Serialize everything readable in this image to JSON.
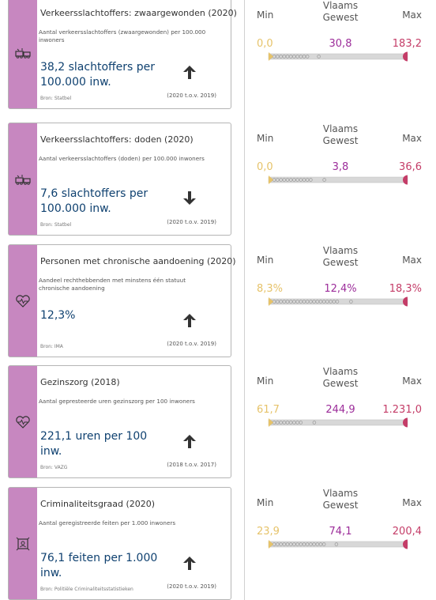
{
  "indicators": [
    {
      "title": "Verkeersslachtoffers: zwaargewonden (2020)",
      "description": "Aantal verkeersslachtoffers (zwaargewonden) per 100.000 inwoners",
      "value_line1": "38,2 slachtoffers per",
      "value_line2": "100.000 inw.",
      "trend": "up",
      "source": "Bron: Statbel",
      "period": "(2020 t.o.v. 2019)",
      "icon": "traffic-accident-icon",
      "min": "0,0",
      "vlaams_gewest": "30,8",
      "max": "183,2",
      "position_fraction": 0.168
    },
    {
      "title": "Verkeersslachtoffers: doden (2020)",
      "description": "Aantal verkeersslachtoffers (doden) per 100.000 inwoners",
      "value_line1": "7,6 slachtoffers per",
      "value_line2": "100.000 inw.",
      "trend": "down",
      "source": "Bron: Statbel",
      "period": "(2020 t.o.v. 2019)",
      "icon": "traffic-accident-icon",
      "min": "0,0",
      "vlaams_gewest": "3,8",
      "max": "36,6",
      "position_fraction": 0.208
    },
    {
      "title": "Personen met chronische aandoening (2020)",
      "description": "Aandeel rechthebbenden met minstens één statuut chronische aandoening",
      "value_line1": "12,3%",
      "value_line2": "",
      "trend": "up",
      "source": "Bron: IMA",
      "period": "(2020 t.o.v. 2019)",
      "icon": "heart-pulse-icon",
      "min": "8,3%",
      "vlaams_gewest": "12,4%",
      "max": "18,3%",
      "position_fraction": 0.4
    },
    {
      "title": "Gezinszorg (2018)",
      "description": "Aantal gepresteerde uren gezinszorg per 100 inwoners",
      "value_line1": "221,1 uren per 100 inw.",
      "value_line2": "",
      "trend": "up",
      "source": "Bron: VAZG",
      "period": "(2018 t.o.v. 2017)",
      "icon": "heart-pulse-icon",
      "min": "61,7",
      "vlaams_gewest": "244,9",
      "max": "1.231,0",
      "position_fraction": 0.136
    },
    {
      "title": "Criminaliteitsgraad (2020)",
      "description": "Aantal geregistreerde feiten per 1.000 inwoners",
      "value_line1": "76,1 feiten per 1.000 inw.",
      "value_line2": "",
      "trend": "up",
      "source": "Bron: Politiële Criminaliteitsstatistieken",
      "period": "(2020 t.o.v. 2019)",
      "icon": "police-icon",
      "min": "23,9",
      "vlaams_gewest": "74,1",
      "max": "200,4",
      "position_fraction": 0.295
    }
  ],
  "labels": {
    "min": "Min",
    "vlaams_gewest_line1": "Vlaams",
    "vlaams_gewest_line2": "Gewest",
    "max": "Max"
  },
  "colors": {
    "strip": "#c787c0",
    "value_text": "#0f4170",
    "min": "#e6c36a",
    "vlaams_gewest": "#9c2d9a",
    "max": "#c43d68",
    "bar": "#d8d8d8"
  }
}
